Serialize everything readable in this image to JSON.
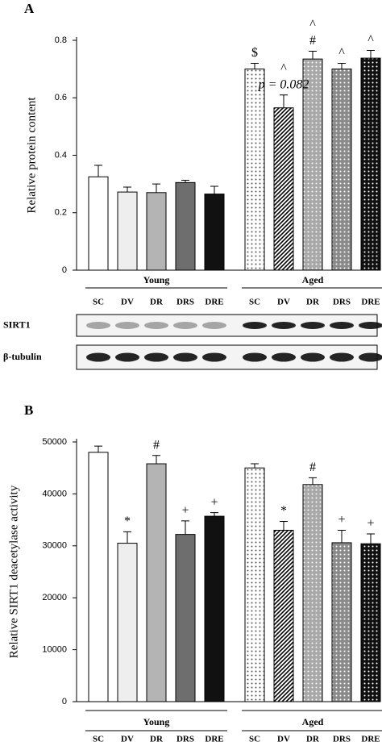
{
  "chart_data": [
    {
      "type": "bar",
      "panel": "A",
      "y_label": "Relative protein content",
      "categories": [
        "SC",
        "DV",
        "DR",
        "DRS",
        "DRE",
        "SC",
        "DV",
        "DR",
        "DRS",
        "DRE"
      ],
      "groups": [
        "Young",
        "Aged"
      ],
      "values": [
        0.325,
        0.272,
        0.27,
        0.305,
        0.265,
        0.7,
        0.565,
        0.735,
        0.7,
        0.738
      ],
      "errors": [
        0.04,
        0.017,
        0.03,
        0.008,
        0.027,
        0.02,
        0.045,
        0.027,
        0.02,
        0.027
      ],
      "colors": [
        "#ffffff",
        "#eeeeee",
        "#b4b4b4",
        "#6e6e6e",
        "#111111",
        "#ffffff",
        "#ffffff",
        "#a8a8a8",
        "#8a8a8a",
        "#111111"
      ],
      "patterns": [
        "none",
        "none",
        "none",
        "none",
        "none",
        "dots",
        "hatch",
        "dots",
        "dots",
        "dots"
      ],
      "ylim": [
        0,
        0.8
      ],
      "yticks": [
        0,
        0.2,
        0.4,
        0.6,
        0.8
      ],
      "annotations": [
        {
          "category": 5,
          "text": "$"
        },
        {
          "category": 6,
          "text": "p = 0.082"
        },
        {
          "category": 6,
          "text": "^"
        },
        {
          "category": 7,
          "text": "#"
        },
        {
          "category": 7,
          "text": "^"
        },
        {
          "category": 8,
          "text": "^"
        },
        {
          "category": 9,
          "text": "^"
        }
      ],
      "blots": [
        "SIRT1",
        "β-tubulin"
      ]
    },
    {
      "type": "bar",
      "panel": "B",
      "y_label": "Relative SIRT1 deacetylase activity",
      "categories": [
        "SC",
        "DV",
        "DR",
        "DRS",
        "DRE",
        "SC",
        "DV",
        "DR",
        "DRS",
        "DRE"
      ],
      "groups": [
        "Young",
        "Aged"
      ],
      "values": [
        48000,
        30500,
        45800,
        32200,
        35700,
        45000,
        33000,
        41800,
        30600,
        30400
      ],
      "errors": [
        1200,
        2200,
        1600,
        2600,
        700,
        800,
        1700,
        1300,
        2400,
        1900
      ],
      "colors": [
        "#ffffff",
        "#eeeeee",
        "#b4b4b4",
        "#6e6e6e",
        "#111111",
        "#ffffff",
        "#ffffff",
        "#a8a8a8",
        "#8a8a8a",
        "#111111"
      ],
      "patterns": [
        "none",
        "none",
        "none",
        "none",
        "none",
        "dots",
        "hatch",
        "dots",
        "dots",
        "dots"
      ],
      "ylim": [
        0,
        50000
      ],
      "yticks": [
        0,
        10000,
        20000,
        30000,
        40000,
        50000
      ],
      "annotations": [
        {
          "category": 1,
          "text": "*"
        },
        {
          "category": 2,
          "text": "#"
        },
        {
          "category": 3,
          "text": "+"
        },
        {
          "category": 4,
          "text": "+"
        },
        {
          "category": 6,
          "text": "*"
        },
        {
          "category": 7,
          "text": "#"
        },
        {
          "category": 8,
          "text": "+"
        },
        {
          "category": 9,
          "text": "+"
        }
      ]
    }
  ]
}
